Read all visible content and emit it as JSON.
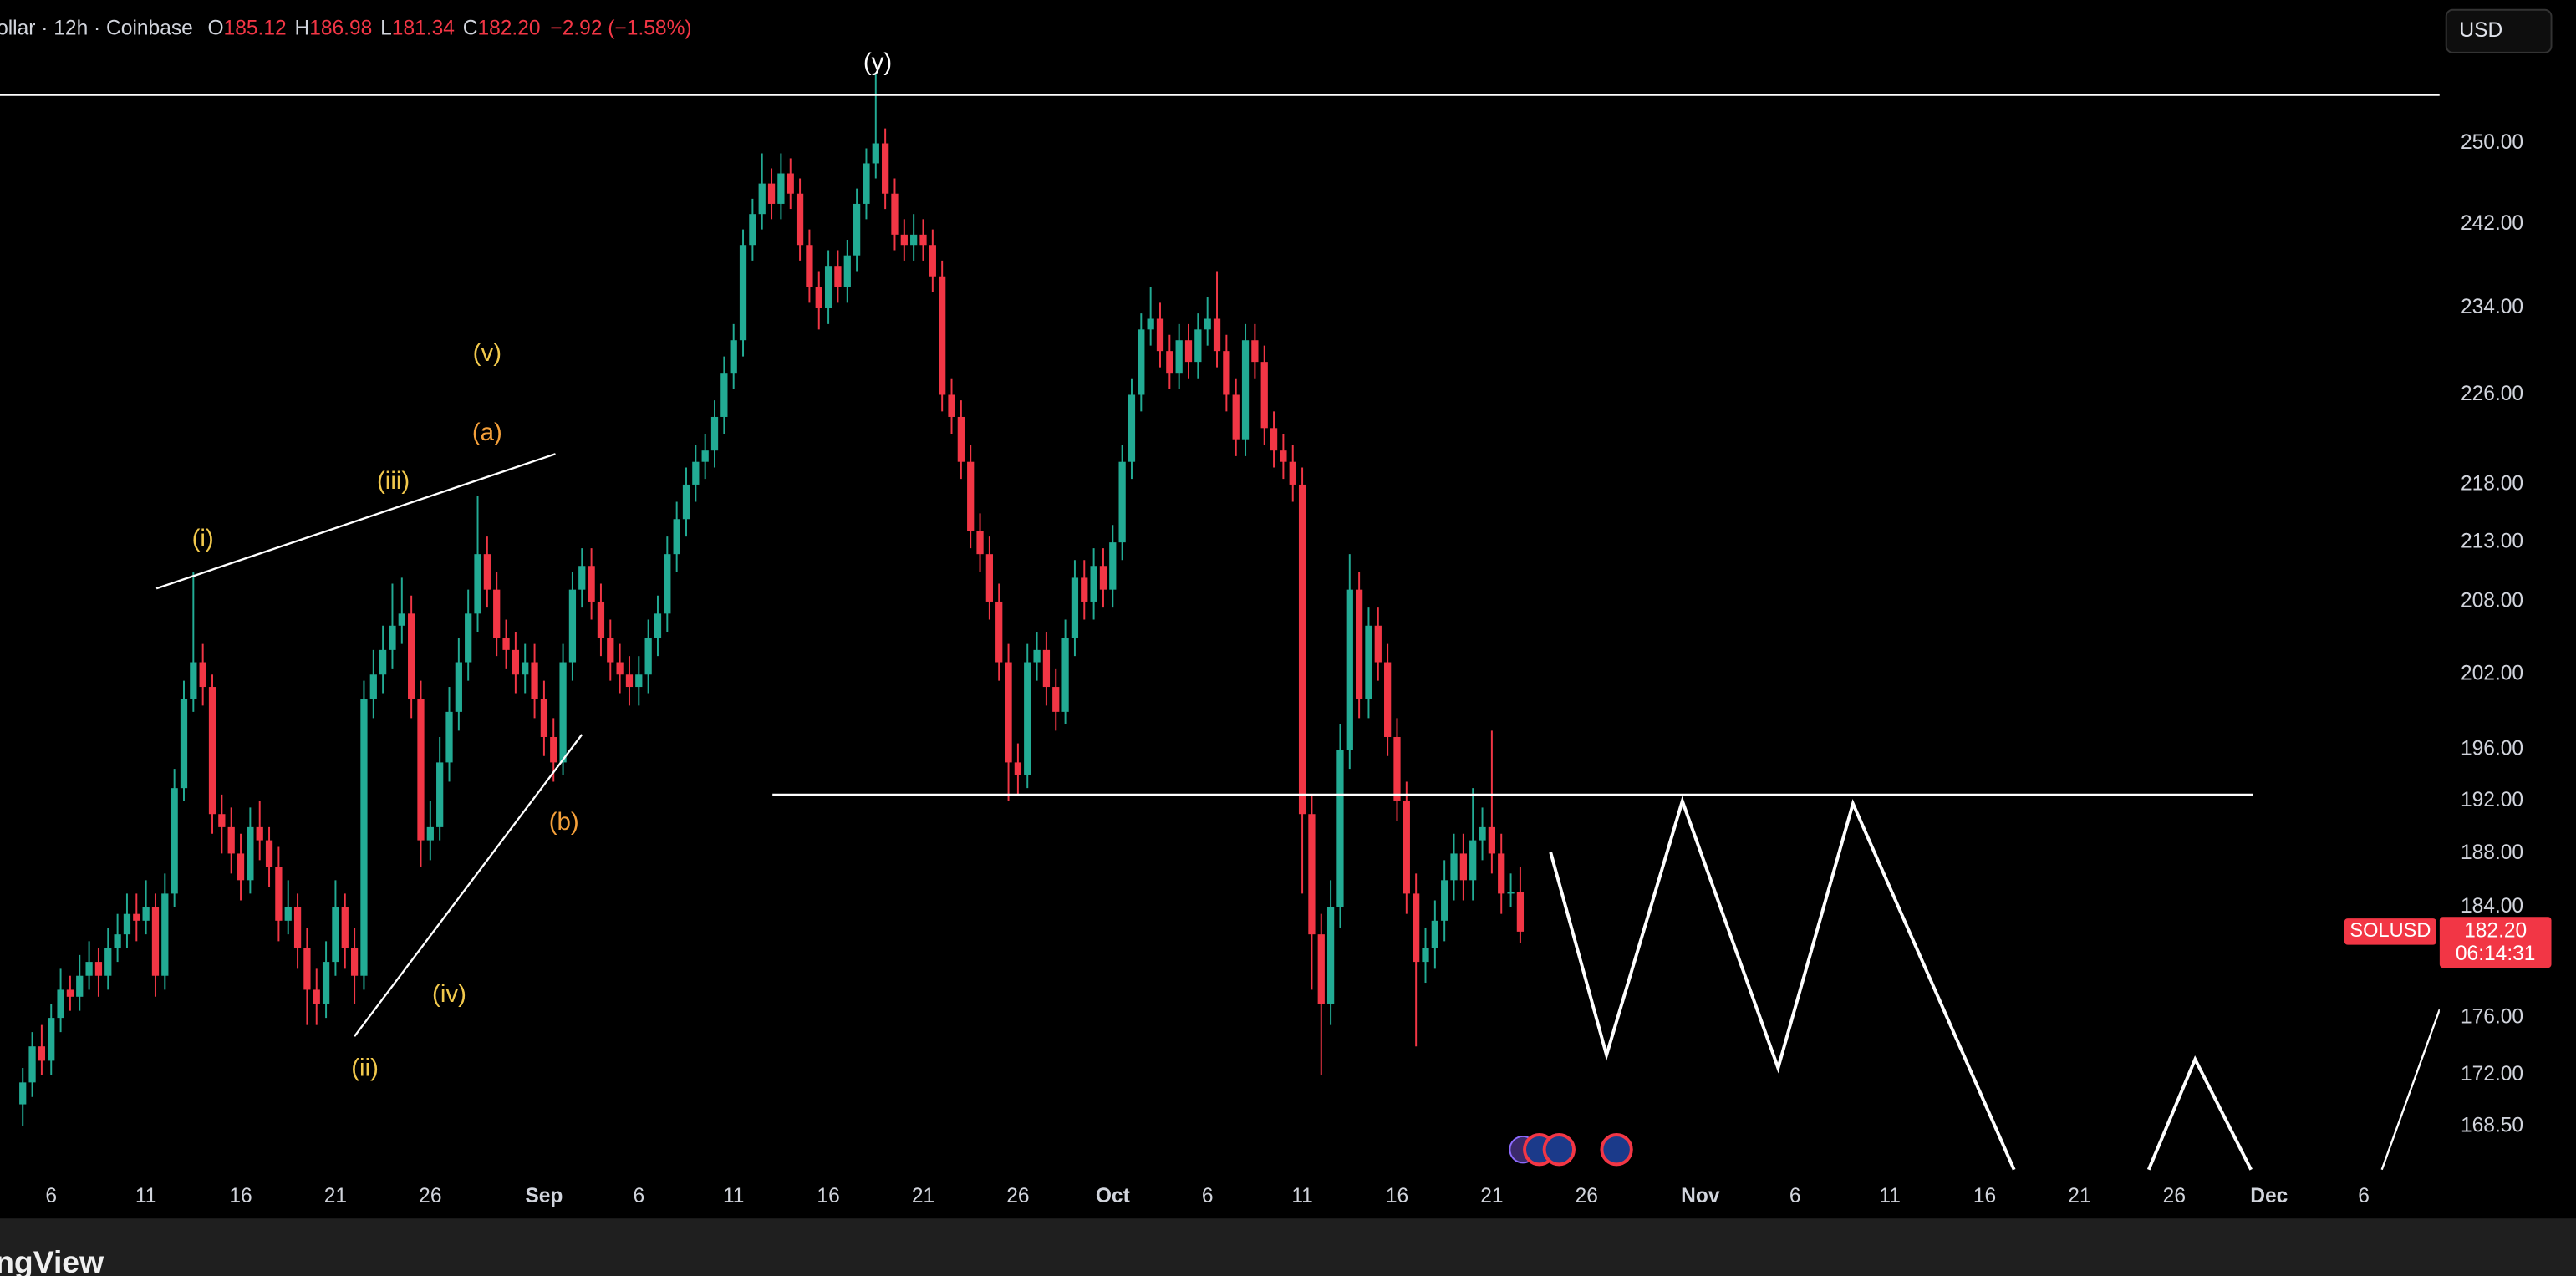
{
  "chart_data": {
    "type": "candlestick",
    "x": [
      1,
      2,
      3,
      4,
      5,
      6,
      7,
      8,
      9,
      10,
      11,
      12,
      13,
      14,
      15,
      16,
      17,
      18,
      19,
      20,
      21,
      22,
      23,
      24,
      25,
      26,
      27,
      28,
      29,
      30,
      31,
      32,
      33,
      34,
      35,
      36,
      37,
      38,
      39,
      40,
      41,
      42,
      43,
      44,
      45,
      46,
      47,
      48,
      49,
      50,
      51,
      52,
      53,
      54,
      55,
      56,
      57,
      58,
      59,
      60,
      61,
      62,
      63,
      64,
      65,
      66,
      67,
      68,
      69,
      70,
      71,
      72,
      73,
      74,
      75,
      76,
      77,
      78,
      79,
      80,
      81,
      82,
      83,
      84,
      85,
      86,
      87,
      88,
      89,
      90,
      91,
      92,
      93,
      94,
      95,
      96,
      97,
      98,
      99,
      100,
      101,
      102,
      103,
      104,
      105,
      106,
      107,
      108,
      109,
      110,
      111,
      112,
      113,
      114,
      115,
      116,
      117,
      118,
      119,
      120,
      121,
      122,
      123,
      124,
      125,
      126,
      127,
      128,
      129,
      130,
      131,
      132,
      133,
      134,
      135,
      136,
      137,
      138,
      139,
      140,
      141,
      142,
      143,
      144,
      145,
      146,
      147,
      148,
      149,
      150,
      151,
      152,
      153,
      154,
      155,
      156,
      157,
      158,
      159
    ],
    "open": [
      170,
      171.5,
      174,
      173,
      176,
      178,
      177.5,
      179,
      180,
      179,
      181,
      182,
      183.5,
      183,
      184,
      179,
      185,
      193,
      200,
      203,
      201,
      191,
      190,
      188,
      186,
      190,
      189,
      187,
      183,
      184,
      181,
      178,
      177,
      180,
      184,
      181,
      179,
      200,
      202,
      204,
      206,
      207,
      200,
      189,
      190,
      195,
      199,
      203,
      207,
      212,
      209,
      205,
      204,
      202,
      203,
      200,
      197,
      195,
      203,
      209,
      211,
      208,
      205,
      203,
      202,
      201,
      202,
      205,
      207,
      212,
      215,
      218,
      220,
      221,
      224,
      228,
      231,
      240,
      243,
      246,
      244,
      247,
      245,
      240,
      236,
      234,
      238,
      236,
      239,
      244,
      248,
      250,
      245,
      241,
      240,
      241,
      240,
      237,
      226,
      224,
      220,
      214,
      212,
      208,
      203,
      195,
      194,
      203,
      204,
      201,
      199,
      205,
      210,
      208,
      211,
      209,
      213,
      220,
      226,
      232,
      233,
      230,
      228,
      231,
      229,
      232,
      233,
      230,
      226,
      222,
      231,
      229,
      223,
      221,
      220,
      218,
      191,
      182,
      177,
      184,
      196,
      209,
      200,
      206,
      203,
      197,
      192,
      185,
      180,
      181,
      183,
      186,
      188,
      186,
      189,
      190,
      188,
      185,
      185.12
    ],
    "high": [
      172.5,
      175,
      175.5,
      177,
      179.5,
      179,
      180.5,
      181.5,
      181,
      182.5,
      183.5,
      185,
      185,
      186,
      185,
      186.5,
      194.5,
      201.5,
      210.5,
      204.5,
      202,
      192.5,
      191.5,
      189.5,
      191.5,
      192,
      190,
      188.5,
      186,
      185,
      182.5,
      179.5,
      181.5,
      186,
      185,
      182.5,
      201.5,
      204,
      206,
      209.5,
      210,
      208.5,
      201.5,
      192,
      197,
      201,
      205,
      209,
      217,
      213.5,
      210.5,
      206.5,
      205.5,
      204.5,
      204.5,
      201.5,
      198.5,
      204.5,
      210.5,
      212.5,
      212.5,
      209.5,
      206.5,
      204.5,
      203.5,
      203.5,
      206.5,
      208.5,
      213.5,
      216.5,
      219.5,
      221.5,
      222.5,
      225.5,
      229.5,
      232.5,
      241.5,
      244.5,
      249,
      247.5,
      249,
      248.5,
      246.5,
      241.5,
      237.5,
      239.5,
      239.5,
      240.5,
      245.5,
      249.5,
      257,
      251.5,
      246.5,
      242.5,
      243,
      242.5,
      241.5,
      238.5,
      227.5,
      225.5,
      221.5,
      215.5,
      213.5,
      209.5,
      204.5,
      196.5,
      204.5,
      205.5,
      205.5,
      202.5,
      206.5,
      211.5,
      211.5,
      212.5,
      212.5,
      214.5,
      221.5,
      227.5,
      233.5,
      236,
      234.5,
      231.5,
      232.5,
      232.5,
      233.5,
      235,
      237.5,
      231.5,
      227.5,
      232.5,
      232.5,
      230.5,
      224.5,
      222.5,
      221.5,
      219.5,
      192.5,
      183.5,
      186,
      198,
      212,
      210.5,
      207.5,
      207.5,
      204.5,
      198.5,
      193.5,
      186.5,
      182.5,
      184.5,
      187.5,
      189.5,
      189.5,
      193,
      191.5,
      197.5,
      189.5,
      186.5,
      186.98
    ],
    "low": [
      168.5,
      170.5,
      172,
      172,
      175,
      176.5,
      176.5,
      178,
      177.5,
      178,
      180,
      181,
      181.5,
      182,
      177.5,
      178,
      184,
      192,
      199,
      199.5,
      189.5,
      188,
      186.5,
      184.5,
      185,
      187.5,
      185.5,
      181.5,
      182,
      179.5,
      175.5,
      175.5,
      176,
      179,
      179.5,
      177,
      178,
      198.5,
      200.5,
      202.5,
      204.5,
      198.5,
      187,
      187.5,
      189,
      193.5,
      197.5,
      201.5,
      205.5,
      207.5,
      203.5,
      202.5,
      200.5,
      200.5,
      198.5,
      195.5,
      193.5,
      194,
      201.5,
      207.5,
      206.5,
      203.5,
      201.5,
      200.5,
      199.5,
      199.5,
      200.5,
      203.5,
      205.5,
      210.5,
      213.5,
      216.5,
      218.5,
      219.5,
      222.5,
      226.5,
      229.5,
      238.5,
      241.5,
      242.5,
      242.5,
      243.5,
      238.5,
      234.5,
      232,
      232.5,
      234.5,
      234.5,
      237.5,
      242.5,
      246.5,
      243.5,
      239.5,
      238.5,
      238.5,
      238.5,
      235.5,
      224.5,
      222.5,
      218.5,
      212.5,
      210.5,
      206.5,
      201.5,
      192,
      192.5,
      193,
      201.5,
      199.5,
      197.5,
      198,
      203.5,
      206.5,
      206.5,
      207.5,
      207.5,
      211.5,
      218.5,
      224.5,
      230.5,
      228.5,
      226.5,
      226.5,
      227.5,
      227.5,
      230.5,
      228.5,
      224.5,
      220.5,
      220.5,
      227.5,
      221.5,
      219.5,
      218.5,
      216.5,
      185,
      178,
      172,
      175.5,
      182.5,
      194.5,
      198.5,
      198.5,
      201.5,
      195.5,
      190.5,
      183.5,
      174,
      178.5,
      179.5,
      181.5,
      184.5,
      184.5,
      184.5,
      187.5,
      186.5,
      183.5,
      184,
      181.34
    ],
    "close": [
      171.5,
      174,
      173,
      176,
      178,
      177.5,
      179,
      180,
      179,
      181,
      182,
      183.5,
      183,
      184,
      179,
      185,
      193,
      200,
      203,
      201,
      191,
      190,
      188,
      186,
      190,
      189,
      187,
      183,
      184,
      181,
      178,
      177,
      180,
      184,
      181,
      179,
      200,
      202,
      204,
      206,
      207,
      200,
      189,
      190,
      195,
      199,
      203,
      207,
      212,
      209,
      205,
      204,
      202,
      203,
      200,
      197,
      195,
      203,
      209,
      211,
      208,
      205,
      203,
      202,
      201,
      202,
      205,
      207,
      212,
      215,
      218,
      220,
      221,
      224,
      228,
      231,
      240,
      243,
      246,
      244,
      247,
      245,
      240,
      236,
      234,
      238,
      236,
      239,
      244,
      248,
      250,
      245,
      241,
      240,
      241,
      240,
      237,
      226,
      224,
      220,
      214,
      212,
      208,
      203,
      195,
      194,
      203,
      204,
      201,
      199,
      205,
      210,
      208,
      211,
      209,
      213,
      220,
      226,
      232,
      233,
      230,
      228,
      231,
      229,
      232,
      233,
      230,
      226,
      222,
      231,
      229,
      223,
      221,
      220,
      218,
      191,
      182,
      177,
      184,
      196,
      209,
      200,
      206,
      203,
      197,
      192,
      185,
      180,
      181,
      183,
      186,
      188,
      186,
      189,
      190,
      188,
      185,
      185.12,
      182.2
    ],
    "up_color": "#22ab94",
    "down_color": "#f23645",
    "log_scale": true,
    "xlim": [
      -1.4,
      256
    ],
    "ylim": [
      165.3,
      264.8
    ],
    "xticks": [
      {
        "value": 4,
        "label": "6"
      },
      {
        "value": 14,
        "label": "11"
      },
      {
        "value": 24,
        "label": "16"
      },
      {
        "value": 34,
        "label": "21"
      },
      {
        "value": 44,
        "label": "26"
      },
      {
        "value": 56,
        "label": "Sep"
      },
      {
        "value": 66,
        "label": "6"
      },
      {
        "value": 76,
        "label": "11"
      },
      {
        "value": 86,
        "label": "16"
      },
      {
        "value": 96,
        "label": "21"
      },
      {
        "value": 106,
        "label": "26"
      },
      {
        "value": 116,
        "label": "Oct"
      },
      {
        "value": 126,
        "label": "6"
      },
      {
        "value": 136,
        "label": "11"
      },
      {
        "value": 146,
        "label": "16"
      },
      {
        "value": 156,
        "label": "21"
      },
      {
        "value": 166,
        "label": "26"
      },
      {
        "value": 178,
        "label": "Nov"
      },
      {
        "value": 188,
        "label": "6"
      },
      {
        "value": 198,
        "label": "11"
      },
      {
        "value": 208,
        "label": "16"
      },
      {
        "value": 218,
        "label": "21"
      },
      {
        "value": 228,
        "label": "26"
      },
      {
        "value": 238,
        "label": "Dec"
      },
      {
        "value": 248,
        "label": "6"
      }
    ],
    "yticks": [
      {
        "value": 250,
        "label": "250.00"
      },
      {
        "value": 242,
        "label": "242.00"
      },
      {
        "value": 234,
        "label": "234.00"
      },
      {
        "value": 226,
        "label": "226.00"
      },
      {
        "value": 218,
        "label": "218.00"
      },
      {
        "value": 213,
        "label": "213.00"
      },
      {
        "value": 208,
        "label": "208.00"
      },
      {
        "value": 202,
        "label": "202.00"
      },
      {
        "value": 196,
        "label": "196.00"
      },
      {
        "value": 192,
        "label": "192.00"
      },
      {
        "value": 188,
        "label": "188.00"
      },
      {
        "value": 184,
        "label": "184.00"
      },
      {
        "value": 176,
        "label": "176.00"
      },
      {
        "value": 172,
        "label": "172.00"
      },
      {
        "value": 168.5,
        "label": "168.50"
      }
    ],
    "drawings": [
      {
        "color": "#ffffff",
        "x": [
          -1.4,
          256
        ],
        "y": [
          254.9,
          254.9
        ]
      },
      {
        "color": "#ffffff",
        "x": [
          15.1,
          57.2
        ],
        "y": [
          209.1,
          220.7
        ]
      },
      {
        "color": "#ffffff",
        "x": [
          36.0,
          60.0
        ],
        "y": [
          174.7,
          197.2
        ]
      },
      {
        "color": "#ffffff",
        "x": [
          80.1,
          236.3
        ],
        "y": [
          192.5,
          192.5
        ]
      },
      {
        "color": "#ffffff",
        "x": [
          162.2,
          168.1,
          176.1,
          186.2,
          194.1,
          211.1
        ],
        "y": [
          188.1,
          173.4,
          192.0,
          172.5,
          191.8,
          165.6
        ]
      },
      {
        "color": "#ffffff",
        "x": [
          225.3,
          230.2,
          236.1
        ],
        "y": [
          165.6,
          173.1,
          165.6
        ]
      },
      {
        "color": "#ffffff",
        "x": [
          249.9,
          256
        ],
        "y": [
          165.6,
          176.6
        ]
      }
    ],
    "annotations": [
      {
        "text": "(y)",
        "x": 91.2,
        "y": 258.1,
        "color": "#ffffff"
      },
      {
        "text": "(i)",
        "x": 20.0,
        "y": 213.2,
        "color": "#f2c94c"
      },
      {
        "text": "(iii)",
        "x": 40.1,
        "y": 218.2,
        "color": "#f2c94c"
      },
      {
        "text": "(v)",
        "x": 50.0,
        "y": 229.7,
        "color": "#f2c94c"
      },
      {
        "text": "(a)",
        "x": 50.0,
        "y": 222.5,
        "color": "#f5a03a"
      },
      {
        "text": "(b)",
        "x": 58.1,
        "y": 190.3,
        "color": "#f5a03a"
      },
      {
        "text": "(iv)",
        "x": 46.0,
        "y": 177.6,
        "color": "#f2c94c"
      },
      {
        "text": "(ii)",
        "x": 37.1,
        "y": 172.4,
        "color": "#f2c94c"
      }
    ],
    "legend": {
      "title": "ollar · 12h · Coinbase",
      "fields": [
        {
          "key": "O",
          "value": "185.12"
        },
        {
          "key": "H",
          "value": "186.98"
        },
        {
          "key": "L",
          "value": "181.34"
        },
        {
          "key": "C",
          "value": "182.20"
        }
      ],
      "change": "−2.92 (−1.58%)"
    },
    "price_tag": {
      "symbol": "SOLUSD",
      "price": "182.20",
      "countdown": "06:14:31"
    }
  },
  "toolbar": {
    "currency": "USD"
  },
  "footer": {
    "brand": "ngView"
  }
}
